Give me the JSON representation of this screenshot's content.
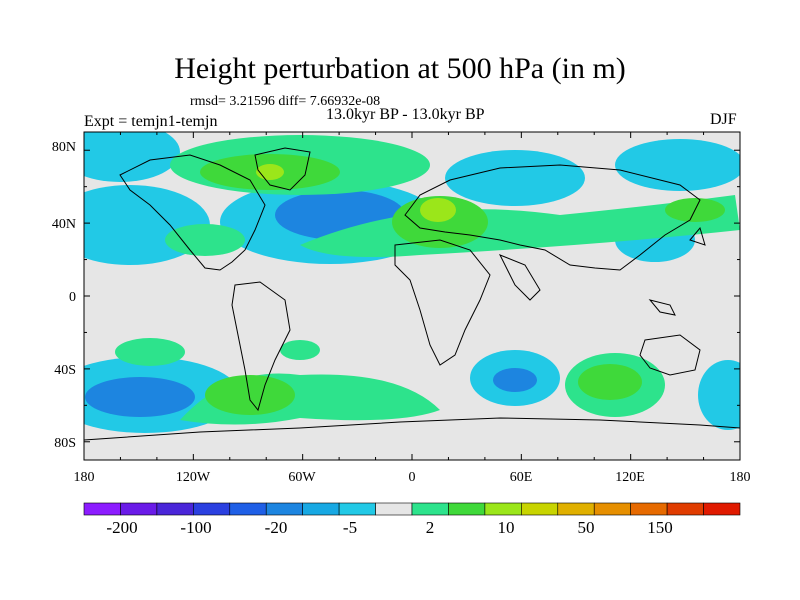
{
  "title": "Height perturbation at 500 hPa (in m)",
  "stats_line": "rmsd= 3.21596 diff= 7.66932e-08",
  "periods_line": "13.0kyr BP - 13.0kyr BP",
  "experiment_line": "Expt = temjn1-temjn",
  "season": "DJF",
  "map": {
    "lon_ticks": [
      "180",
      "120W",
      "60W",
      "0",
      "60E",
      "120E",
      "180"
    ],
    "lat_ticks": [
      "80N",
      "40N",
      "0",
      "40S",
      "80S"
    ],
    "background_color": "#e6e6e6"
  },
  "colorbar": {
    "colors": [
      "#8c1cff",
      "#6a1be8",
      "#4a26d9",
      "#2b40e0",
      "#1f5fe6",
      "#1d85e0",
      "#17a8e3",
      "#22c9e6",
      "#e6e6e6",
      "#2de38c",
      "#3fd93a",
      "#9be61a",
      "#c8d400",
      "#e0b000",
      "#e68f00",
      "#e66a00",
      "#e03c00",
      "#e01a00"
    ],
    "labels": [
      "-200",
      "-100",
      "-20",
      "-5",
      "2",
      "10",
      "50",
      "150"
    ]
  },
  "chart_data": {
    "type": "heatmap",
    "title": "Height perturbation at 500 hPa (in m)",
    "subtitle": "13.0kyr BP - 13.0kyr BP",
    "x_ticks": [
      "180",
      "120W",
      "60W",
      "0",
      "60E",
      "120E",
      "180"
    ],
    "y_ticks": [
      "80N",
      "40N",
      "0",
      "40S",
      "80S"
    ],
    "xlim": [
      -180,
      180
    ],
    "ylim": [
      -90,
      90
    ],
    "levels": [
      -200,
      -100,
      -20,
      -5,
      2,
      10,
      50,
      150
    ],
    "features": [
      {
        "lon": -25,
        "lat": 47,
        "level": -20,
        "kind": "negative"
      },
      {
        "lon": -135,
        "lat": 80,
        "level": -5,
        "kind": "negative"
      },
      {
        "lon": -160,
        "lat": 40,
        "level": -5,
        "kind": "negative"
      },
      {
        "lon": 80,
        "lat": 70,
        "level": -5,
        "kind": "negative"
      },
      {
        "lon": 150,
        "lat": 75,
        "level": -5,
        "kind": "negative"
      },
      {
        "lon": 130,
        "lat": 30,
        "level": -5,
        "kind": "negative"
      },
      {
        "lon": -135,
        "lat": -60,
        "level": -20,
        "kind": "negative"
      },
      {
        "lon": 60,
        "lat": -50,
        "level": -20,
        "kind": "negative"
      },
      {
        "lon": 175,
        "lat": -60,
        "level": -5,
        "kind": "negative"
      },
      {
        "lon": -60,
        "lat": 70,
        "level": 10,
        "kind": "positive"
      },
      {
        "lon": 15,
        "lat": 47,
        "level": 50,
        "kind": "positive"
      },
      {
        "lon": 160,
        "lat": 45,
        "level": 10,
        "kind": "positive"
      },
      {
        "lon": -70,
        "lat": -55,
        "level": 10,
        "kind": "positive"
      },
      {
        "lon": 105,
        "lat": -50,
        "level": 10,
        "kind": "positive"
      },
      {
        "lon": -145,
        "lat": -30,
        "level": 2,
        "kind": "positive"
      }
    ]
  }
}
